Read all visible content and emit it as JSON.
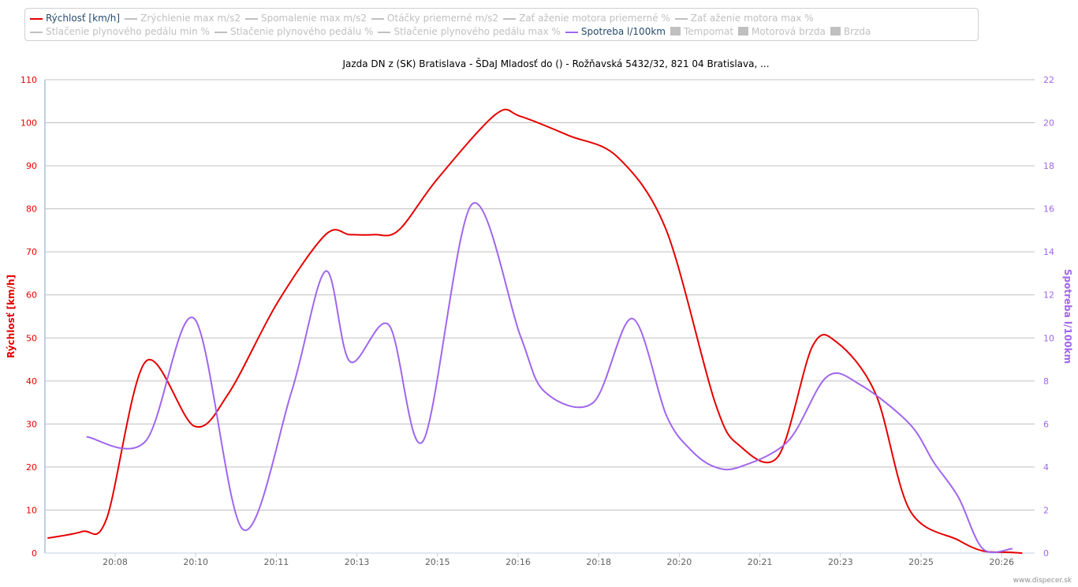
{
  "legend": {
    "items": [
      {
        "label": "Rýchlosť [km/h]",
        "active": true,
        "kind": "line",
        "color": "#e60000"
      },
      {
        "label": "Zrýchlenie max m/s2",
        "active": false,
        "kind": "line",
        "color": "#c0c0c0"
      },
      {
        "label": "Spomalenie max m/s2",
        "active": false,
        "kind": "line",
        "color": "#c0c0c0"
      },
      {
        "label": "Otáčky priemerné m/s2",
        "active": false,
        "kind": "line",
        "color": "#c0c0c0"
      },
      {
        "label": "Zať aženie motora priemerné %",
        "active": false,
        "kind": "line",
        "color": "#c0c0c0"
      },
      {
        "label": "Zať aženie motora max %",
        "active": false,
        "kind": "line",
        "color": "#c0c0c0"
      },
      {
        "label": "Stlačenie plynového pedálu min %",
        "active": false,
        "kind": "line",
        "color": "#c0c0c0"
      },
      {
        "label": "Stlačenie plynového pedálu %",
        "active": false,
        "kind": "line",
        "color": "#c0c0c0"
      },
      {
        "label": "Stlačenie plynového pedálu max %",
        "active": false,
        "kind": "line",
        "color": "#c0c0c0"
      },
      {
        "label": "Spotreba l/100km",
        "active": true,
        "kind": "line",
        "color": "#a066ee"
      },
      {
        "label": "Tempomat",
        "active": false,
        "kind": "box",
        "color": "#c0c0c0"
      },
      {
        "label": "Motorová brzda",
        "active": false,
        "kind": "box",
        "color": "#c0c0c0"
      },
      {
        "label": "Brzda",
        "active": false,
        "kind": "box",
        "color": "#c0c0c0"
      }
    ]
  },
  "footer": {
    "credit": "www.dispecer.sk"
  },
  "chart_data": {
    "type": "line",
    "title": "Jazda DN z (SK) Bratislava - ŠDaJ Mladosť do () - Rožňavská 5432/32, 821 04 Bratislava, ...",
    "xlabel": "",
    "x_ticks": [
      "20:08",
      "20:10",
      "20:11",
      "20:13",
      "20:15",
      "20:16",
      "20:18",
      "20:20",
      "20:21",
      "20:23",
      "20:25",
      "20:26"
    ],
    "ylabel_left": "Rýchlosť [km/h]",
    "ylabel_right": "Spotreba l/100km",
    "ylim_left": [
      0,
      110
    ],
    "ylim_right": [
      0,
      22
    ],
    "y_ticks_left": [
      0,
      10,
      20,
      30,
      40,
      50,
      60,
      70,
      80,
      90,
      100,
      110
    ],
    "y_ticks_right": [
      0,
      2,
      4,
      6,
      8,
      10,
      12,
      14,
      16,
      18,
      20,
      22
    ],
    "grid": true,
    "legend_position": "top",
    "series": [
      {
        "name": "Rýchlosť [km/h]",
        "axis": "left",
        "color": "#e60000",
        "x": [
          "20:06:48",
          "20:07:30",
          "20:08:00",
          "20:08:48",
          "20:09:48",
          "20:10:30",
          "20:11:30",
          "20:12:30",
          "20:13:00",
          "20:13:30",
          "20:14:00",
          "20:14:48",
          "20:16:00",
          "20:16:30",
          "20:17:30",
          "20:18:30",
          "20:19:30",
          "20:20:30",
          "20:21:00",
          "20:21:48",
          "20:22:30",
          "20:23:00",
          "20:23:48",
          "20:24:30",
          "20:25:30",
          "20:26:00",
          "20:26:30",
          "20:26:48"
        ],
        "values": [
          3.5,
          5,
          8,
          44.5,
          29.5,
          37,
          58,
          74,
          74,
          74,
          75,
          87,
          102,
          101.5,
          97,
          92,
          75,
          35,
          25,
          22.5,
          48,
          49,
          37,
          10,
          3,
          0.5,
          0.2,
          0
        ]
      },
      {
        "name": "Spotreba l/100km",
        "axis": "right",
        "color": "#a066ee",
        "x": [
          "20:07:36",
          "20:08:48",
          "20:09:48",
          "20:10:48",
          "20:11:48",
          "20:12:30",
          "20:13:00",
          "20:13:48",
          "20:14:30",
          "20:15:30",
          "20:16:30",
          "20:17:00",
          "20:18:00",
          "20:18:48",
          "20:19:30",
          "20:20:00",
          "20:20:30",
          "20:21:00",
          "20:22:00",
          "20:22:48",
          "20:23:30",
          "20:24:30",
          "20:25:00",
          "20:25:30",
          "20:26:00",
          "20:26:36"
        ],
        "values": [
          5.4,
          5.2,
          10.9,
          1.1,
          7.5,
          13.1,
          8.9,
          10.6,
          5.2,
          16.2,
          10.1,
          7.5,
          7.0,
          10.9,
          6.4,
          4.8,
          4.0,
          4.0,
          5.2,
          8.2,
          7.8,
          6.0,
          4.2,
          2.6,
          0.2,
          0.2
        ]
      }
    ]
  }
}
